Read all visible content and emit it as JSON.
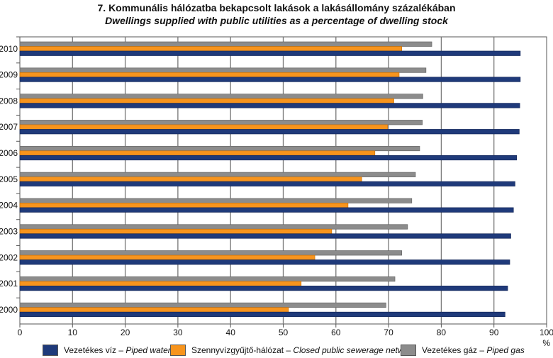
{
  "chart_data": {
    "type": "bar",
    "orientation": "horizontal",
    "title": "7. Kommunális hálózatba bekapcsolt lakások a lakásállomány százalékában",
    "subtitle": "Dwellings supplied with public utilities as a percentage of dwelling stock",
    "categories": [
      "2010",
      "2009",
      "2008",
      "2007",
      "2006",
      "2005",
      "2004",
      "2003",
      "2002",
      "2001",
      "2000"
    ],
    "series": [
      {
        "name": "Vezetékes gáz",
        "name_en": "Piped gas",
        "color": "#8c8c8c",
        "values": [
          78.2,
          77.1,
          76.5,
          76.4,
          75.9,
          75.1,
          74.4,
          73.6,
          72.5,
          71.2,
          69.5
        ]
      },
      {
        "name": "Szennyvízgyűjtő-hálózat",
        "name_en": "Closed public sewerage network",
        "color": "#f7941d",
        "values": [
          72.5,
          72.0,
          71.0,
          69.8,
          67.4,
          64.9,
          62.3,
          59.2,
          56.0,
          53.4,
          51.0
        ]
      },
      {
        "name": "Vezetékes víz",
        "name_en": "Piped water",
        "color": "#1f3a7a",
        "values": [
          95.0,
          95.0,
          94.9,
          94.8,
          94.3,
          94.0,
          93.7,
          93.2,
          93.0,
          92.6,
          92.1
        ]
      }
    ],
    "xlim": [
      0,
      100
    ],
    "xticks": [
      "0",
      "10",
      "20",
      "30",
      "40",
      "50",
      "60",
      "70",
      "80",
      "90",
      "100"
    ],
    "xunit": "%",
    "grid": true,
    "legend_placement": "bottom",
    "legend": [
      {
        "hu": "Vezetékes víz",
        "en": "Piped water",
        "color": "#1f3a7a"
      },
      {
        "hu": "Szennyvízgyűjtő-hálózat",
        "en": "Closed public sewerage network",
        "color": "#f7941d"
      },
      {
        "hu": "Vezetékes gáz",
        "en": "Piped gas",
        "color": "#8c8c8c"
      }
    ]
  }
}
